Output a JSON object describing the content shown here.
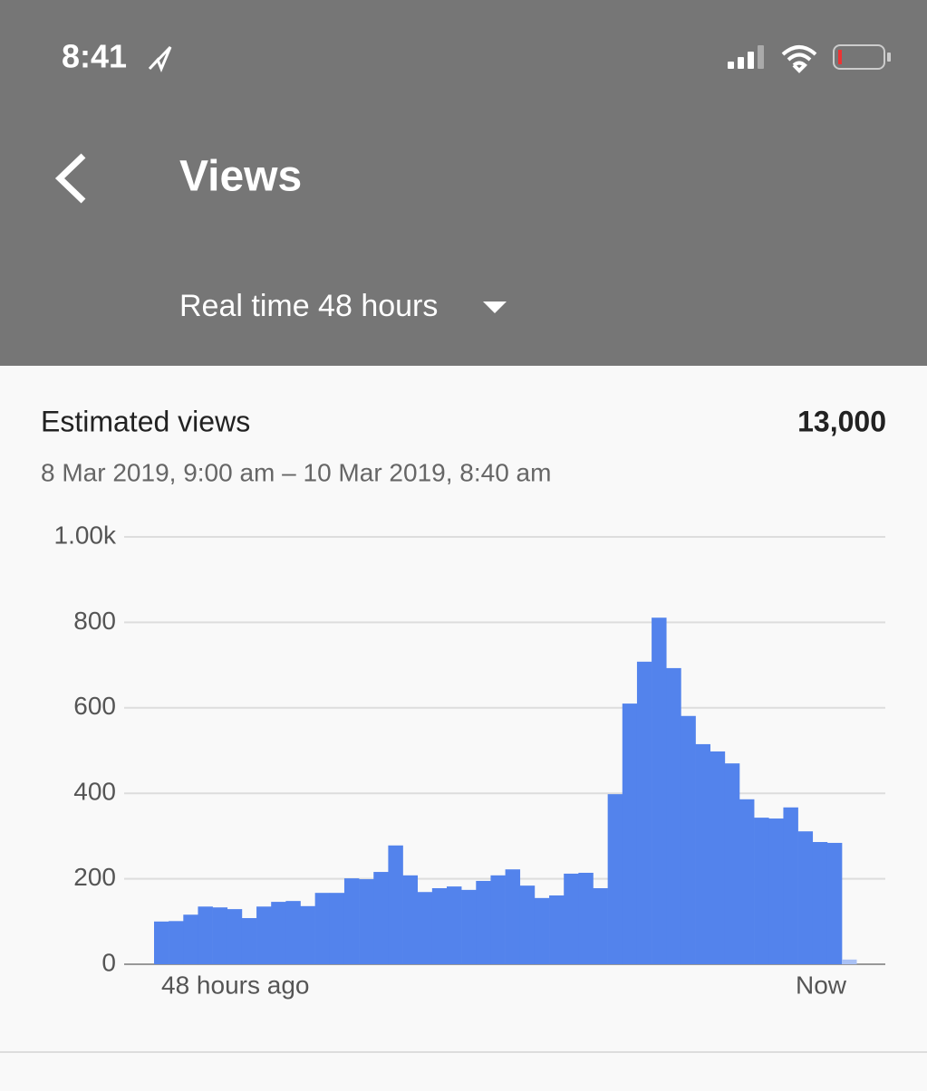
{
  "status_bar": {
    "time": "8:41"
  },
  "header": {
    "title": "Views",
    "period": "Real time 48 hours"
  },
  "chart_data": {
    "type": "bar",
    "title": "Estimated views",
    "total": "13,000",
    "subtitle": "8 Mar 2019, 9:00 am – 10 Mar 2019, 8:40 am",
    "x_labels": [
      "48 hours ago",
      "Now"
    ],
    "values": [
      100,
      101,
      116,
      135,
      133,
      129,
      108,
      135,
      146,
      148,
      136,
      167,
      167,
      201,
      199,
      216,
      278,
      208,
      169,
      178,
      182,
      174,
      195,
      208,
      222,
      184,
      155,
      161,
      212,
      214,
      178,
      398,
      610,
      708,
      811,
      693,
      581,
      515,
      498,
      470,
      386,
      343,
      341,
      367,
      311,
      286,
      284,
      11
    ],
    "color": "#5383ec",
    "partial_color": "#a9c1f5",
    "ylim": [
      0,
      1000
    ],
    "yticks": [
      0,
      200,
      400,
      600,
      800,
      {
        "value": 1000,
        "label": "1.00k"
      }
    ],
    "grid": true
  }
}
